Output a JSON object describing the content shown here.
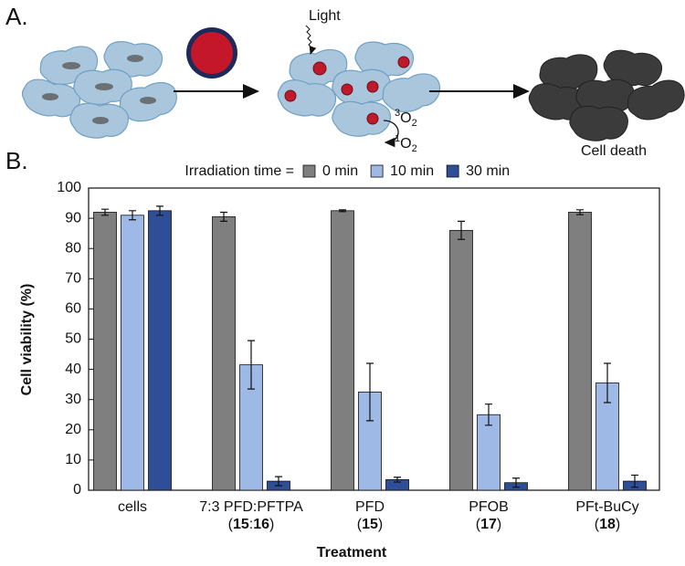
{
  "panel_a": {
    "label": "A.",
    "light": "Light",
    "outcome": "Cell death",
    "oxygen": [
      {
        "sup": "3",
        "base": "O",
        "sub": "2"
      },
      {
        "sup": "1",
        "base": "O",
        "sub": "2"
      }
    ]
  },
  "panel_b": {
    "label": "B."
  },
  "chart_data": {
    "type": "bar",
    "legend_title": "Irradiation time =",
    "categories": [
      "cells",
      "7:3 PFD:PFTPA",
      "PFD",
      "PFOB",
      "PFt-BuCy"
    ],
    "category_notes": [
      null,
      "(15:16)",
      "(15)",
      "(17)",
      "(18)"
    ],
    "x_label": "Treatment",
    "y_label": "Cell viability (%)",
    "ylim": [
      0,
      100
    ],
    "yticks": [
      0,
      10,
      20,
      30,
      40,
      50,
      60,
      70,
      80,
      90,
      100
    ],
    "series": [
      {
        "name": "0 min",
        "color": "#7f7f7f",
        "values": [
          92,
          90.5,
          92.5,
          86,
          92
        ],
        "errors": [
          1,
          1.5,
          0.3,
          3,
          0.8
        ]
      },
      {
        "name": "10 min",
        "color": "#9fb9e6",
        "values": [
          91,
          41.5,
          32.5,
          25,
          35.5
        ],
        "errors": [
          1.5,
          8,
          9.5,
          3.5,
          6.5
        ]
      },
      {
        "name": "30 min",
        "color": "#2e4f97",
        "values": [
          92.5,
          3,
          3.5,
          2.5,
          3
        ],
        "errors": [
          1.5,
          1.5,
          0.8,
          1.5,
          2
        ]
      }
    ]
  }
}
